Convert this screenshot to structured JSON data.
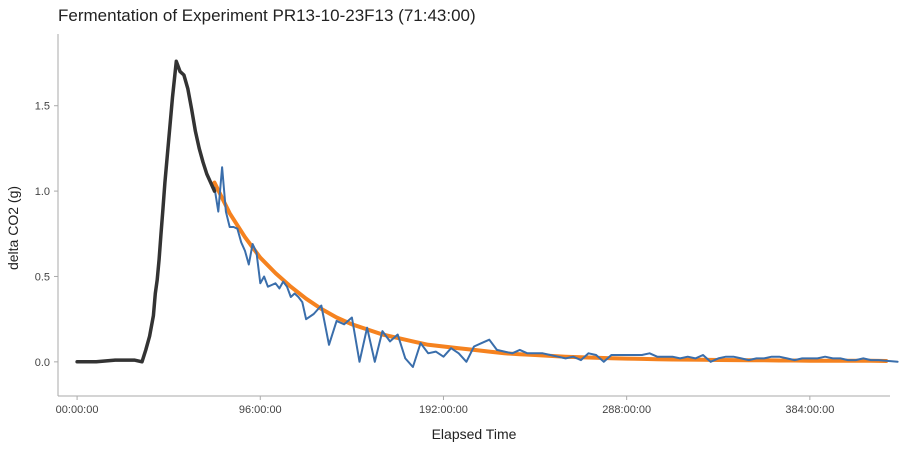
{
  "chart_data": {
    "type": "line",
    "title": "Fermentation of Experiment PR13-10-23F13 (71:43:00)",
    "xlabel": "Elapsed Time",
    "ylabel": "delta CO2 (g)",
    "x_unit": "hours (shown as HH:MM:SS)",
    "xlim": [
      -10,
      426
    ],
    "ylim": [
      -0.2,
      1.92
    ],
    "x_ticks": [
      0,
      96,
      192,
      288,
      384
    ],
    "x_tick_labels": [
      "00:00:00",
      "96:00:00",
      "192:00:00",
      "288:00:00",
      "384:00:00"
    ],
    "y_ticks": [
      0.0,
      0.5,
      1.0,
      1.5
    ],
    "y_tick_labels": [
      "0.0",
      "0.5",
      "1.0",
      "1.5"
    ],
    "grid": false,
    "legend": "none",
    "series": [
      {
        "color": "#333333",
        "style": "thick-line",
        "x": [
          0,
          10,
          20,
          30,
          34,
          36,
          38,
          40,
          41,
          42,
          43,
          44,
          45,
          46,
          48,
          50,
          52,
          54,
          56,
          58,
          60,
          62,
          64,
          66,
          68,
          70,
          72
        ],
        "y": [
          0.0,
          0.0,
          0.01,
          0.01,
          0.0,
          0.07,
          0.15,
          0.27,
          0.4,
          0.48,
          0.6,
          0.75,
          0.9,
          1.05,
          1.3,
          1.55,
          1.76,
          1.7,
          1.68,
          1.6,
          1.48,
          1.35,
          1.25,
          1.17,
          1.1,
          1.05,
          1.0
        ]
      },
      {
        "color": "#3a6eab",
        "style": "line",
        "x": [
          72,
          74,
          76,
          78,
          80,
          82,
          84,
          86,
          88,
          90,
          92,
          94,
          96,
          98,
          100,
          102,
          104,
          106,
          108,
          110,
          112,
          114,
          116,
          118,
          120,
          124,
          128,
          132,
          136,
          140,
          144,
          148,
          152,
          156,
          160,
          164,
          168,
          172,
          176,
          180,
          184,
          188,
          192,
          196,
          200,
          204,
          208,
          212,
          216,
          220,
          224,
          228,
          232,
          236,
          240,
          244,
          248,
          252,
          256,
          260,
          264,
          268,
          272,
          276,
          280,
          284,
          288,
          292,
          296,
          300,
          304,
          308,
          312,
          316,
          320,
          324,
          328,
          332,
          336,
          340,
          344,
          348,
          352,
          356,
          360,
          364,
          368,
          372,
          376,
          380,
          384,
          388,
          392,
          396,
          400,
          404,
          408,
          412,
          416,
          420,
          430
        ],
        "y": [
          1.02,
          0.88,
          1.14,
          0.88,
          0.79,
          0.79,
          0.78,
          0.7,
          0.65,
          0.57,
          0.69,
          0.64,
          0.46,
          0.5,
          0.44,
          0.45,
          0.46,
          0.43,
          0.47,
          0.44,
          0.38,
          0.4,
          0.38,
          0.35,
          0.25,
          0.28,
          0.33,
          0.1,
          0.24,
          0.22,
          0.26,
          0.0,
          0.2,
          0.0,
          0.18,
          0.12,
          0.16,
          0.02,
          -0.03,
          0.11,
          0.05,
          0.06,
          0.03,
          0.08,
          0.05,
          0.0,
          0.09,
          0.11,
          0.13,
          0.07,
          0.06,
          0.05,
          0.07,
          0.05,
          0.05,
          0.05,
          0.04,
          0.03,
          0.02,
          0.03,
          0.01,
          0.05,
          0.04,
          0.0,
          0.04,
          0.04,
          0.04,
          0.04,
          0.04,
          0.05,
          0.03,
          0.03,
          0.03,
          0.02,
          0.03,
          0.02,
          0.04,
          0.0,
          0.02,
          0.03,
          0.03,
          0.02,
          0.01,
          0.02,
          0.02,
          0.03,
          0.03,
          0.02,
          0.01,
          0.02,
          0.02,
          0.02,
          0.03,
          0.02,
          0.02,
          0.01,
          0.01,
          0.02,
          0.01,
          0.01,
          0.0
        ]
      },
      {
        "color": "#f5821f",
        "style": "fit-curve",
        "x": [
          72,
          80,
          88,
          96,
          104,
          112,
          120,
          128,
          136,
          144,
          152,
          160,
          168,
          176,
          184,
          192,
          200,
          208,
          216,
          224,
          232,
          240,
          248,
          256,
          264,
          272,
          280,
          288,
          296,
          304,
          312,
          320,
          328,
          336,
          344,
          352,
          360,
          368,
          376,
          384,
          392,
          400,
          408,
          416,
          424
        ],
        "y": [
          1.05,
          0.87,
          0.73,
          0.61,
          0.52,
          0.44,
          0.37,
          0.31,
          0.26,
          0.22,
          0.19,
          0.16,
          0.14,
          0.12,
          0.1,
          0.09,
          0.08,
          0.07,
          0.06,
          0.05,
          0.045,
          0.04,
          0.035,
          0.03,
          0.027,
          0.024,
          0.021,
          0.019,
          0.017,
          0.015,
          0.014,
          0.013,
          0.012,
          0.011,
          0.01,
          0.009,
          0.009,
          0.008,
          0.008,
          0.007,
          0.007,
          0.006,
          0.006,
          0.006,
          0.005
        ]
      }
    ]
  }
}
